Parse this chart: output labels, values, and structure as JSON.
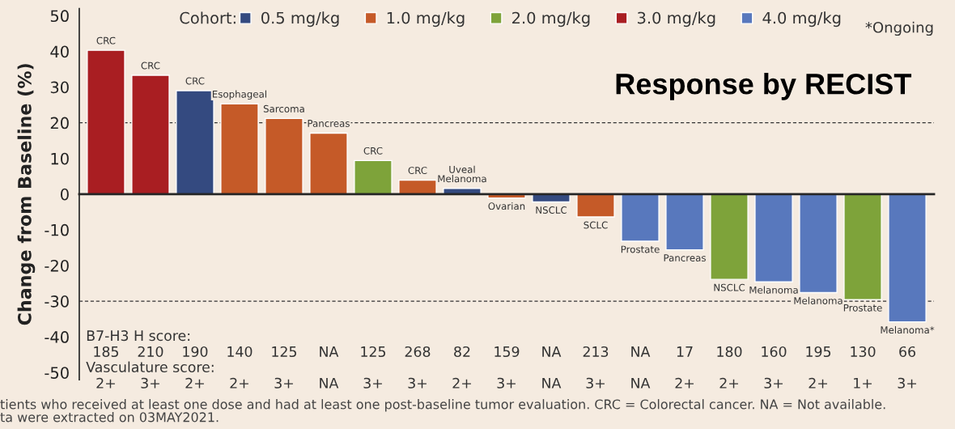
{
  "chart_data": {
    "type": "bar",
    "title": "Response by RECIST",
    "ylabel": "Change from Baseline (%)",
    "legend_title": "Cohort:",
    "categories": [
      "CRC",
      "CRC",
      "CRC",
      "Esophageal",
      "Sarcoma",
      "Pancreas",
      "CRC",
      "CRC",
      "Uveal\nMelanoma",
      "Ovarian",
      "NSCLC",
      "SCLC",
      "Prostate",
      "Pancreas",
      "NSCLC",
      "Melanoma",
      "Melanoma",
      "Prostate",
      "Melanoma*"
    ],
    "series": [
      {
        "name": "0.5 mg/kg",
        "color": "#344a80",
        "values": [
          null,
          null,
          29.0,
          null,
          null,
          null,
          null,
          null,
          1.6,
          null,
          -2.2,
          null,
          null,
          null,
          null,
          null,
          null,
          null,
          null
        ]
      },
      {
        "name": "1.0 mg/kg",
        "color": "#c55a28",
        "values": [
          null,
          null,
          null,
          25.3,
          21.2,
          17.1,
          null,
          3.9,
          null,
          -1.1,
          null,
          -6.4,
          null,
          null,
          null,
          null,
          null,
          null,
          null
        ]
      },
      {
        "name": "2.0 mg/kg",
        "color": "#7ea33a",
        "values": [
          null,
          null,
          null,
          null,
          null,
          null,
          9.4,
          null,
          null,
          null,
          null,
          null,
          null,
          null,
          -23.9,
          null,
          null,
          -29.6,
          null
        ]
      },
      {
        "name": "3.0 mg/kg",
        "color": "#a91e22",
        "values": [
          40.3,
          33.3,
          null,
          null,
          null,
          null,
          null,
          null,
          null,
          null,
          null,
          null,
          null,
          null,
          null,
          null,
          null,
          null,
          null
        ]
      },
      {
        "name": "4.0 mg/kg",
        "color": "#5878bd",
        "values": [
          null,
          null,
          null,
          null,
          null,
          null,
          null,
          null,
          null,
          null,
          null,
          null,
          -13.2,
          -15.6,
          null,
          -24.6,
          -27.6,
          null,
          -35.8
        ]
      }
    ],
    "ylim": [
      -52,
      52
    ],
    "yticks": [
      -50,
      -40,
      -30,
      -20,
      -10,
      0,
      10,
      20,
      30,
      40,
      50
    ],
    "ref_lines": [
      {
        "axis": "y",
        "value": 20,
        "line_style": "dashed"
      },
      {
        "axis": "y",
        "value": -30,
        "line_style": "dashed"
      }
    ],
    "legend": "top",
    "grid": false,
    "annotations": [
      "*Ongoing",
      "B7-H3 H score:",
      "185",
      "210",
      "190",
      "140",
      "125",
      "NA",
      "125",
      "268",
      "82",
      "159",
      "NA",
      "213",
      "NA",
      "17",
      "180",
      "160",
      "195",
      "130",
      "66",
      "Vasculature score:",
      "2+",
      "3+",
      "2+",
      "2+",
      "3+",
      "NA",
      "3+",
      "3+",
      "2+",
      "3+",
      "NA",
      "3+",
      "NA",
      "2+",
      "2+",
      "3+",
      "2+",
      "1+",
      "3+",
      "tients who received at least one dose and had at least one post-baseline tumor evaluation. CRC = Colorectal cancer. NA = Not available.",
      "ta were extracted on 03MAY2021."
    ]
  }
}
